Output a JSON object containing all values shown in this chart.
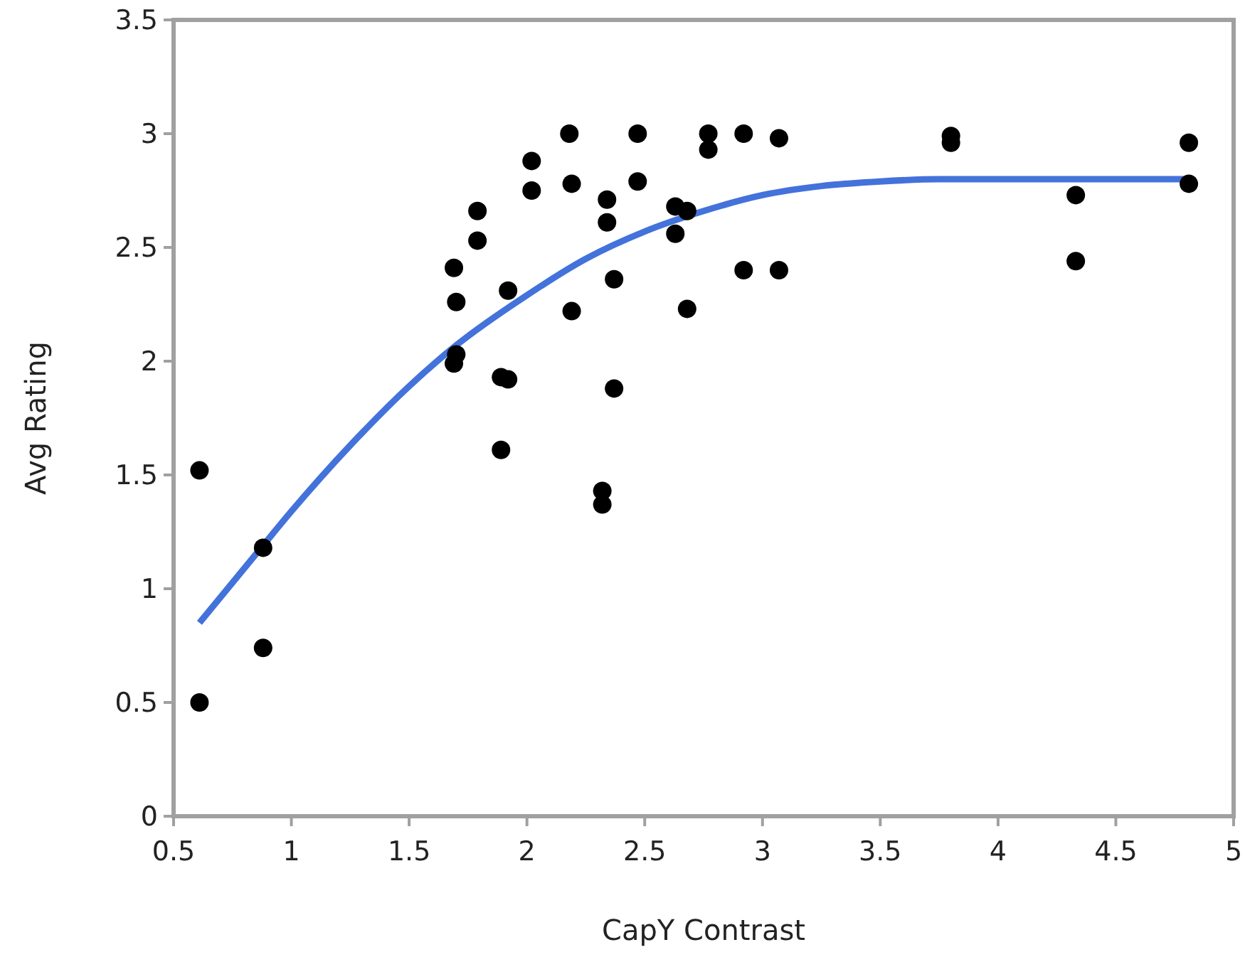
{
  "chart_data": {
    "type": "scatter",
    "xlabel": "CapY Contrast",
    "ylabel": "Avg Rating",
    "xlim": [
      0.5,
      5
    ],
    "ylim": [
      0,
      3.5
    ],
    "xticks": [
      0.5,
      1,
      1.5,
      2,
      2.5,
      3,
      3.5,
      4,
      4.5,
      5
    ],
    "yticks": [
      0,
      0.5,
      1,
      1.5,
      2,
      2.5,
      3,
      3.5
    ],
    "grid": false,
    "series": [
      {
        "color": "#000000",
        "marker": "circle",
        "x": [
          0.61,
          0.61,
          0.88,
          0.88,
          1.69,
          1.7,
          1.7,
          1.69,
          1.79,
          1.79,
          1.92,
          1.89,
          1.92,
          1.89,
          2.02,
          2.02,
          2.18,
          2.19,
          2.19,
          2.32,
          2.32,
          2.34,
          2.34,
          2.37,
          2.37,
          2.47,
          2.47,
          2.63,
          2.63,
          2.68,
          2.68,
          2.77,
          2.77,
          2.92,
          2.92,
          3.07,
          3.07,
          3.8,
          3.8,
          4.33,
          4.33,
          4.81,
          4.81
        ],
        "values": [
          1.52,
          0.5,
          1.18,
          0.74,
          2.41,
          2.26,
          2.03,
          1.99,
          2.66,
          2.53,
          2.31,
          1.93,
          1.92,
          1.61,
          2.88,
          2.75,
          3.0,
          2.78,
          2.22,
          1.43,
          1.37,
          2.71,
          2.61,
          2.36,
          1.88,
          3.0,
          2.79,
          2.68,
          2.56,
          2.66,
          2.23,
          3.0,
          2.93,
          3.0,
          2.4,
          2.98,
          2.4,
          2.99,
          2.96,
          2.73,
          2.44,
          2.96,
          2.78
        ]
      },
      {
        "type": "line",
        "color": "#4472db",
        "line_style": "solid",
        "marker": "none",
        "x": [
          0.61,
          0.88,
          1.0,
          1.25,
          1.5,
          1.7,
          2.0,
          2.25,
          2.5,
          2.75,
          3.0,
          3.25,
          3.5,
          3.75,
          4.0,
          4.81
        ],
        "values": [
          0.85,
          1.19,
          1.34,
          1.63,
          1.89,
          2.07,
          2.29,
          2.45,
          2.57,
          2.66,
          2.73,
          2.77,
          2.79,
          2.8,
          2.8,
          2.8
        ]
      }
    ]
  }
}
